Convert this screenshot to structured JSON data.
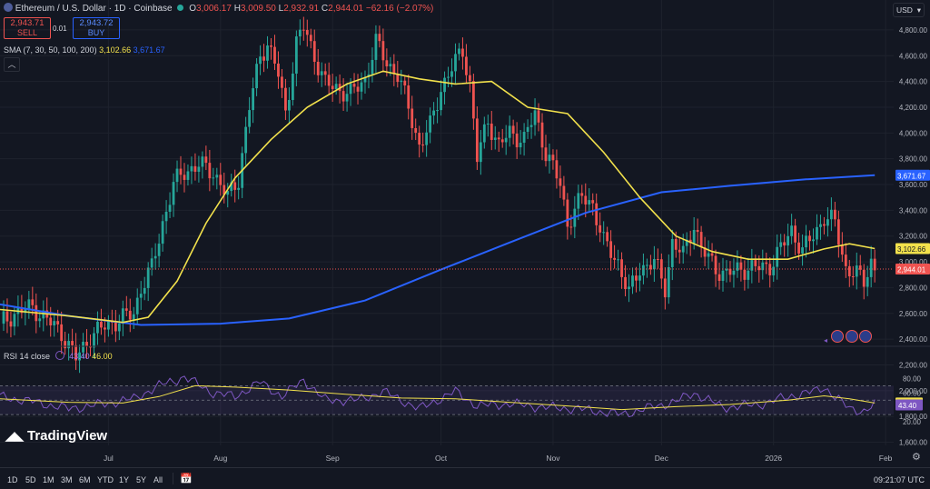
{
  "header": {
    "symbol": "Ethereum / U.S. Dollar · 1D · Coinbase",
    "o_label": "O",
    "o_value": "3,006.17",
    "h_label": "H",
    "h_value": "3,009.50",
    "l_label": "L",
    "l_value": "2,932.91",
    "c_label": "C",
    "c_value": "2,944.01",
    "change": "−62.16 (−2.07%)"
  },
  "trade": {
    "sell_price": "2,943.71",
    "sell_label": "SELL",
    "spread": "0.01",
    "buy_price": "2,943.72",
    "buy_label": "BUY"
  },
  "sma": {
    "label": "SMA (7, 30, 50, 100, 200)",
    "value1": "3,102.66",
    "value2": "3,671.67"
  },
  "rsi": {
    "label": "RSI 14 close",
    "value": "43.40",
    "ma_value": "46.00"
  },
  "currency": "USD",
  "logo": "TradingView",
  "timeframes": [
    "1D",
    "5D",
    "1M",
    "3M",
    "6M",
    "YTD",
    "1Y",
    "5Y",
    "All"
  ],
  "clock": "09:21:07 UTC",
  "colors": {
    "background": "#131722",
    "up": "#26a69a",
    "down": "#ef5350",
    "sma_short": "#f2e14c",
    "sma_long": "#2962ff",
    "rsi": "#7e57c2"
  },
  "chart_data": [
    {
      "type": "candlestick",
      "title": "Ethereum / U.S. Dollar · 1D · Coinbase",
      "ylim": [
        1500,
        4950
      ],
      "y_ticks": [
        4800,
        4600,
        4400,
        4200,
        4000,
        3800,
        3600,
        3400,
        3200,
        3000,
        2800,
        2600,
        2400,
        2200,
        2000,
        1800,
        1600
      ],
      "y_tick_labels": [
        "4,800.00",
        "4,600.00",
        "4,400.00",
        "4,200.00",
        "4,000.00",
        "3,800.00",
        "3,600.00",
        "3,400.00",
        "3,200.00",
        "3,000.00",
        "2,800.00",
        "2,600.00",
        "2,400.00",
        "2,200.00",
        "2,000.00",
        "1,800.00",
        "1,600.00"
      ],
      "x_labels": [
        "Jul",
        "Aug",
        "Sep",
        "Oct",
        "Nov",
        "Dec",
        "2026",
        "Feb"
      ],
      "start_date": "2025-06-01",
      "close_series": [
        {
          "date": "2025-06-01",
          "value": 2520
        },
        {
          "date": "2025-06-05",
          "value": 2600
        },
        {
          "date": "2025-06-10",
          "value": 2650
        },
        {
          "date": "2025-06-14",
          "value": 2550
        },
        {
          "date": "2025-06-18",
          "value": 2450
        },
        {
          "date": "2025-06-22",
          "value": 2250
        },
        {
          "date": "2025-06-26",
          "value": 2420
        },
        {
          "date": "2025-06-30",
          "value": 2500
        },
        {
          "date": "2025-07-04",
          "value": 2550
        },
        {
          "date": "2025-07-08",
          "value": 2600
        },
        {
          "date": "2025-07-10",
          "value": 2800
        },
        {
          "date": "2025-07-13",
          "value": 2950
        },
        {
          "date": "2025-07-16",
          "value": 3300
        },
        {
          "date": "2025-07-19",
          "value": 3600
        },
        {
          "date": "2025-07-22",
          "value": 3700
        },
        {
          "date": "2025-07-26",
          "value": 3750
        },
        {
          "date": "2025-07-30",
          "value": 3700
        },
        {
          "date": "2025-08-03",
          "value": 3500
        },
        {
          "date": "2025-08-06",
          "value": 3650
        },
        {
          "date": "2025-08-09",
          "value": 4200
        },
        {
          "date": "2025-08-12",
          "value": 4600
        },
        {
          "date": "2025-08-14",
          "value": 4700
        },
        {
          "date": "2025-08-17",
          "value": 4450
        },
        {
          "date": "2025-08-19",
          "value": 4150
        },
        {
          "date": "2025-08-22",
          "value": 4700
        },
        {
          "date": "2025-08-24",
          "value": 4820
        },
        {
          "date": "2025-08-27",
          "value": 4600
        },
        {
          "date": "2025-08-30",
          "value": 4380
        },
        {
          "date": "2025-09-02",
          "value": 4350
        },
        {
          "date": "2025-09-06",
          "value": 4300
        },
        {
          "date": "2025-09-10",
          "value": 4420
        },
        {
          "date": "2025-09-13",
          "value": 4700
        },
        {
          "date": "2025-09-16",
          "value": 4550
        },
        {
          "date": "2025-09-19",
          "value": 4450
        },
        {
          "date": "2025-09-22",
          "value": 4200
        },
        {
          "date": "2025-09-25",
          "value": 3900
        },
        {
          "date": "2025-09-28",
          "value": 4050
        },
        {
          "date": "2025-10-01",
          "value": 4350
        },
        {
          "date": "2025-10-04",
          "value": 4500
        },
        {
          "date": "2025-10-07",
          "value": 4650
        },
        {
          "date": "2025-10-09",
          "value": 4380
        },
        {
          "date": "2025-10-11",
          "value": 3800
        },
        {
          "date": "2025-10-14",
          "value": 4100
        },
        {
          "date": "2025-10-17",
          "value": 3900
        },
        {
          "date": "2025-10-20",
          "value": 4000
        },
        {
          "date": "2025-10-24",
          "value": 3950
        },
        {
          "date": "2025-10-27",
          "value": 4150
        },
        {
          "date": "2025-10-30",
          "value": 3850
        },
        {
          "date": "2025-11-03",
          "value": 3600
        },
        {
          "date": "2025-11-05",
          "value": 3300
        },
        {
          "date": "2025-11-09",
          "value": 3500
        },
        {
          "date": "2025-11-12",
          "value": 3450
        },
        {
          "date": "2025-11-15",
          "value": 3150
        },
        {
          "date": "2025-11-19",
          "value": 3000
        },
        {
          "date": "2025-11-22",
          "value": 2750
        },
        {
          "date": "2025-11-25",
          "value": 2950
        },
        {
          "date": "2025-11-29",
          "value": 3000
        },
        {
          "date": "2025-12-02",
          "value": 2800
        },
        {
          "date": "2025-12-04",
          "value": 3150
        },
        {
          "date": "2025-12-07",
          "value": 3050
        },
        {
          "date": "2025-12-10",
          "value": 3300
        },
        {
          "date": "2025-12-12",
          "value": 3100
        },
        {
          "date": "2025-12-16",
          "value": 2950
        },
        {
          "date": "2025-12-19",
          "value": 2900
        },
        {
          "date": "2025-12-23",
          "value": 2950
        },
        {
          "date": "2025-12-27",
          "value": 2950
        },
        {
          "date": "2025-12-31",
          "value": 2970
        },
        {
          "date": "2026-01-03",
          "value": 3100
        },
        {
          "date": "2026-01-06",
          "value": 3250
        },
        {
          "date": "2026-01-09",
          "value": 3080
        },
        {
          "date": "2026-01-13",
          "value": 3250
        },
        {
          "date": "2026-01-15",
          "value": 3350
        },
        {
          "date": "2026-01-18",
          "value": 3300
        },
        {
          "date": "2026-01-21",
          "value": 2950
        },
        {
          "date": "2026-01-24",
          "value": 2900
        },
        {
          "date": "2026-01-26",
          "value": 2850
        },
        {
          "date": "2026-01-28",
          "value": 3006
        },
        {
          "date": "2026-01-29",
          "value": 2944
        }
      ],
      "sma_short_name": "SMA 30",
      "sma_short": [
        {
          "date": "2025-06-01",
          "value": 2630
        },
        {
          "date": "2025-06-20",
          "value": 2580
        },
        {
          "date": "2025-07-05",
          "value": 2530
        },
        {
          "date": "2025-07-12",
          "value": 2570
        },
        {
          "date": "2025-07-20",
          "value": 2850
        },
        {
          "date": "2025-07-28",
          "value": 3300
        },
        {
          "date": "2025-08-05",
          "value": 3650
        },
        {
          "date": "2025-08-15",
          "value": 3950
        },
        {
          "date": "2025-08-25",
          "value": 4200
        },
        {
          "date": "2025-09-05",
          "value": 4380
        },
        {
          "date": "2025-09-15",
          "value": 4480
        },
        {
          "date": "2025-09-25",
          "value": 4420
        },
        {
          "date": "2025-10-05",
          "value": 4380
        },
        {
          "date": "2025-10-15",
          "value": 4400
        },
        {
          "date": "2025-10-25",
          "value": 4200
        },
        {
          "date": "2025-11-05",
          "value": 4150
        },
        {
          "date": "2025-11-15",
          "value": 3850
        },
        {
          "date": "2025-11-25",
          "value": 3500
        },
        {
          "date": "2025-12-05",
          "value": 3200
        },
        {
          "date": "2025-12-15",
          "value": 3080
        },
        {
          "date": "2025-12-25",
          "value": 3020
        },
        {
          "date": "2026-01-05",
          "value": 3020
        },
        {
          "date": "2026-01-15",
          "value": 3100
        },
        {
          "date": "2026-01-22",
          "value": 3140
        },
        {
          "date": "2026-01-29",
          "value": 3103
        }
      ],
      "sma_long_name": "SMA 200",
      "sma_long": [
        {
          "date": "2025-06-01",
          "value": 2670
        },
        {
          "date": "2025-06-20",
          "value": 2580
        },
        {
          "date": "2025-07-10",
          "value": 2510
        },
        {
          "date": "2025-08-01",
          "value": 2520
        },
        {
          "date": "2025-08-20",
          "value": 2560
        },
        {
          "date": "2025-09-10",
          "value": 2700
        },
        {
          "date": "2025-10-01",
          "value": 2940
        },
        {
          "date": "2025-10-20",
          "value": 3150
        },
        {
          "date": "2025-11-10",
          "value": 3380
        },
        {
          "date": "2025-12-01",
          "value": 3540
        },
        {
          "date": "2025-12-20",
          "value": 3590
        },
        {
          "date": "2026-01-10",
          "value": 3640
        },
        {
          "date": "2026-01-29",
          "value": 3672
        }
      ],
      "last_price": "2,944.01",
      "last_sma_short": "3,102.66",
      "last_sma_long": "3,671.67"
    },
    {
      "type": "line",
      "title": "RSI 14 close",
      "ylim": [
        0,
        100
      ],
      "y_ticks": [
        80,
        60,
        40,
        20
      ],
      "y_tick_labels": [
        "80.00",
        "60.00",
        "40.00",
        "20.00"
      ],
      "band": [
        30,
        70
      ],
      "rsi": [
        {
          "date": "2025-06-01",
          "value": 55
        },
        {
          "date": "2025-06-10",
          "value": 48
        },
        {
          "date": "2025-06-20",
          "value": 38
        },
        {
          "date": "2025-06-30",
          "value": 45
        },
        {
          "date": "2025-07-08",
          "value": 52
        },
        {
          "date": "2025-07-15",
          "value": 70
        },
        {
          "date": "2025-07-22",
          "value": 82
        },
        {
          "date": "2025-07-30",
          "value": 60
        },
        {
          "date": "2025-08-05",
          "value": 55
        },
        {
          "date": "2025-08-12",
          "value": 75
        },
        {
          "date": "2025-08-18",
          "value": 55
        },
        {
          "date": "2025-08-24",
          "value": 78
        },
        {
          "date": "2025-08-30",
          "value": 50
        },
        {
          "date": "2025-09-08",
          "value": 50
        },
        {
          "date": "2025-09-15",
          "value": 62
        },
        {
          "date": "2025-09-25",
          "value": 38
        },
        {
          "date": "2025-10-05",
          "value": 62
        },
        {
          "date": "2025-10-11",
          "value": 42
        },
        {
          "date": "2025-10-20",
          "value": 45
        },
        {
          "date": "2025-10-30",
          "value": 40
        },
        {
          "date": "2025-11-08",
          "value": 38
        },
        {
          "date": "2025-11-20",
          "value": 30
        },
        {
          "date": "2025-11-28",
          "value": 40
        },
        {
          "date": "2025-12-05",
          "value": 48
        },
        {
          "date": "2025-12-10",
          "value": 60
        },
        {
          "date": "2025-12-18",
          "value": 40
        },
        {
          "date": "2025-12-28",
          "value": 44
        },
        {
          "date": "2026-01-06",
          "value": 56
        },
        {
          "date": "2026-01-13",
          "value": 63
        },
        {
          "date": "2026-01-15",
          "value": 68
        },
        {
          "date": "2026-01-22",
          "value": 38
        },
        {
          "date": "2026-01-26",
          "value": 35
        },
        {
          "date": "2026-01-29",
          "value": 43.4
        }
      ],
      "rsi_ma": [
        {
          "date": "2025-06-01",
          "value": 52
        },
        {
          "date": "2025-06-20",
          "value": 47
        },
        {
          "date": "2025-07-05",
          "value": 46
        },
        {
          "date": "2025-07-15",
          "value": 55
        },
        {
          "date": "2025-07-25",
          "value": 70
        },
        {
          "date": "2025-08-05",
          "value": 68
        },
        {
          "date": "2025-08-20",
          "value": 64
        },
        {
          "date": "2025-09-05",
          "value": 58
        },
        {
          "date": "2025-09-20",
          "value": 53
        },
        {
          "date": "2025-10-05",
          "value": 52
        },
        {
          "date": "2025-10-20",
          "value": 47
        },
        {
          "date": "2025-11-05",
          "value": 42
        },
        {
          "date": "2025-11-20",
          "value": 37
        },
        {
          "date": "2025-12-05",
          "value": 41
        },
        {
          "date": "2025-12-20",
          "value": 44
        },
        {
          "date": "2026-01-05",
          "value": 50
        },
        {
          "date": "2026-01-15",
          "value": 56
        },
        {
          "date": "2026-01-22",
          "value": 52
        },
        {
          "date": "2026-01-29",
          "value": 46
        }
      ]
    }
  ]
}
